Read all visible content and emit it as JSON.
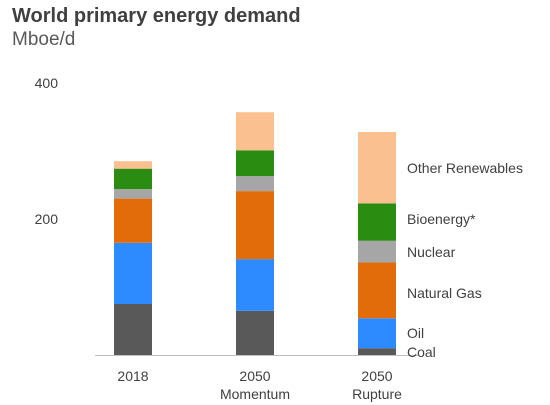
{
  "chart_data": {
    "type": "bar",
    "stacked": true,
    "title": "World primary energy demand",
    "subtitle": "Mboe/d",
    "categories": [
      [
        "2018"
      ],
      [
        "2050",
        "Momentum"
      ],
      [
        "2050",
        "Rupture"
      ]
    ],
    "ylim": [
      0,
      400
    ],
    "yticks": [
      200,
      400
    ],
    "grid": false,
    "legend_placement": "right, labels aligned with last bar segments",
    "series": [
      {
        "name": "Coal",
        "color": "#595959",
        "values": [
          75,
          65,
          10
        ]
      },
      {
        "name": "Oil",
        "color": "#2e8bff",
        "values": [
          90,
          76,
          44
        ]
      },
      {
        "name": "Natural Gas",
        "color": "#e36c0a",
        "values": [
          65,
          100,
          82
        ]
      },
      {
        "name": "Nuclear",
        "color": "#a6a6a6",
        "values": [
          14,
          22,
          32
        ]
      },
      {
        "name": "Bioenergy*",
        "color": "#2a8c11",
        "values": [
          30,
          38,
          55
        ]
      },
      {
        "name": "Other Renewables",
        "color": "#fac090",
        "values": [
          11,
          56,
          105
        ]
      }
    ]
  }
}
